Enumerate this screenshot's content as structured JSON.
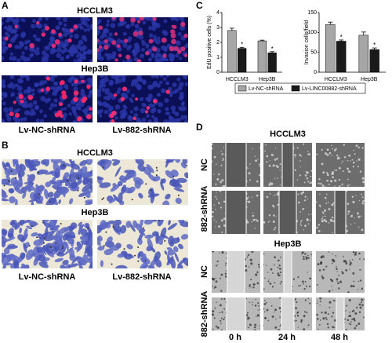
{
  "panels": {
    "A": {
      "label": "A",
      "titles": [
        "HCCLM3",
        "Hep3B"
      ],
      "columns": [
        "Lv-NC-shRNA",
        "Lv-882-shRNA"
      ]
    },
    "B": {
      "label": "B",
      "titles": [
        "HCCLM3",
        "Hep3B"
      ],
      "columns": [
        "Lv-NC-shRNA",
        "Lv-882-shRNA"
      ]
    },
    "C": {
      "label": "C"
    },
    "D": {
      "label": "D",
      "titles": [
        "HCCLM3",
        "Hep3B"
      ],
      "rows": [
        "NC",
        "882-shRNA"
      ],
      "times": [
        "0 h",
        "24 h",
        "48 h"
      ]
    }
  },
  "chart_data": [
    {
      "type": "bar",
      "ylabel": "EdU positive cells (%)",
      "categories": [
        "HCCLM3",
        "Hep3B"
      ],
      "ylim": [
        0,
        4
      ],
      "yticks": [
        0,
        1,
        2,
        3,
        4
      ],
      "series": [
        {
          "name": "Lv-NC-shRNA",
          "color": "#a6a6a6",
          "values": [
            2.8,
            2.1
          ],
          "errors": [
            0.15,
            0.05
          ]
        },
        {
          "name": "Lv-LINC00882-shRNA",
          "color": "#1a1a1a",
          "values": [
            1.6,
            1.3
          ],
          "errors": [
            0.07,
            0.08
          ],
          "significance": [
            "*",
            "*"
          ]
        }
      ]
    },
    {
      "type": "bar",
      "ylabel": "Invasion cells/field",
      "categories": [
        "HCCLM3",
        "Hep3B"
      ],
      "ylim": [
        0,
        150
      ],
      "yticks": [
        0,
        50,
        100,
        150
      ],
      "series": [
        {
          "color": "#a6a6a6",
          "values": [
            120,
            93
          ],
          "errors": [
            6,
            8
          ]
        },
        {
          "color": "#1a1a1a",
          "values": [
            78,
            57
          ],
          "errors": [
            3,
            4
          ],
          "significance": [
            "*",
            "*"
          ]
        }
      ]
    }
  ]
}
